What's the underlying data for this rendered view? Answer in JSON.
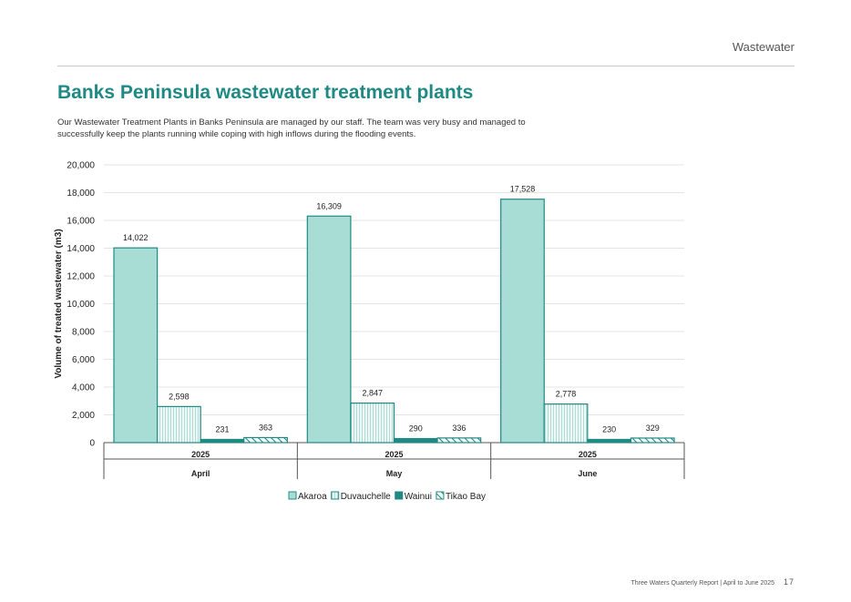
{
  "header": {
    "section": "Wastewater"
  },
  "title": "Banks Peninsula wastewater treatment plants",
  "intro": "Our Wastewater Treatment Plants in Banks Peninsula are managed by our staff. The team was very busy and managed to successfully keep the plants running while coping with high inflows during the flooding events.",
  "footer": {
    "report": "Three Waters Quarterly Report | April to June 2025",
    "page": "17"
  },
  "colors": {
    "accent": "#1f8a84",
    "akaroa": "#a8ddd5",
    "duvauchelle": "#e2f3f0",
    "wainui": "#1f8a84",
    "tikao": "#ffffff",
    "stroke": "#1f8a84"
  },
  "chart_data": {
    "type": "bar",
    "ylabel": "Volume of treated wastewater (m3)",
    "ylim": [
      0,
      20000
    ],
    "yticks": [
      "0",
      "2,000",
      "4,000",
      "6,000",
      "8,000",
      "10,000",
      "12,000",
      "14,000",
      "16,000",
      "18,000",
      "20,000"
    ],
    "categories": [
      {
        "year": "2025",
        "month": "April"
      },
      {
        "year": "2025",
        "month": "May"
      },
      {
        "year": "2025",
        "month": "June"
      }
    ],
    "series": [
      {
        "name": "Akaroa",
        "values": [
          14022,
          16309,
          17528
        ],
        "labels": [
          "14,022",
          "16,309",
          "17,528"
        ],
        "fill": "solid-light"
      },
      {
        "name": "Duvauchelle",
        "values": [
          2598,
          2847,
          2778
        ],
        "labels": [
          "2,598",
          "2,847",
          "2,778"
        ],
        "fill": "vertical-lines"
      },
      {
        "name": "Wainui",
        "values": [
          231,
          290,
          230
        ],
        "labels": [
          "231",
          "290",
          "230"
        ],
        "fill": "solid-dark"
      },
      {
        "name": "Tikao Bay",
        "values": [
          363,
          336,
          329
        ],
        "labels": [
          "363",
          "336",
          "329"
        ],
        "fill": "diagonal-hatch"
      }
    ],
    "grid": true,
    "legend": "bottom-center"
  }
}
